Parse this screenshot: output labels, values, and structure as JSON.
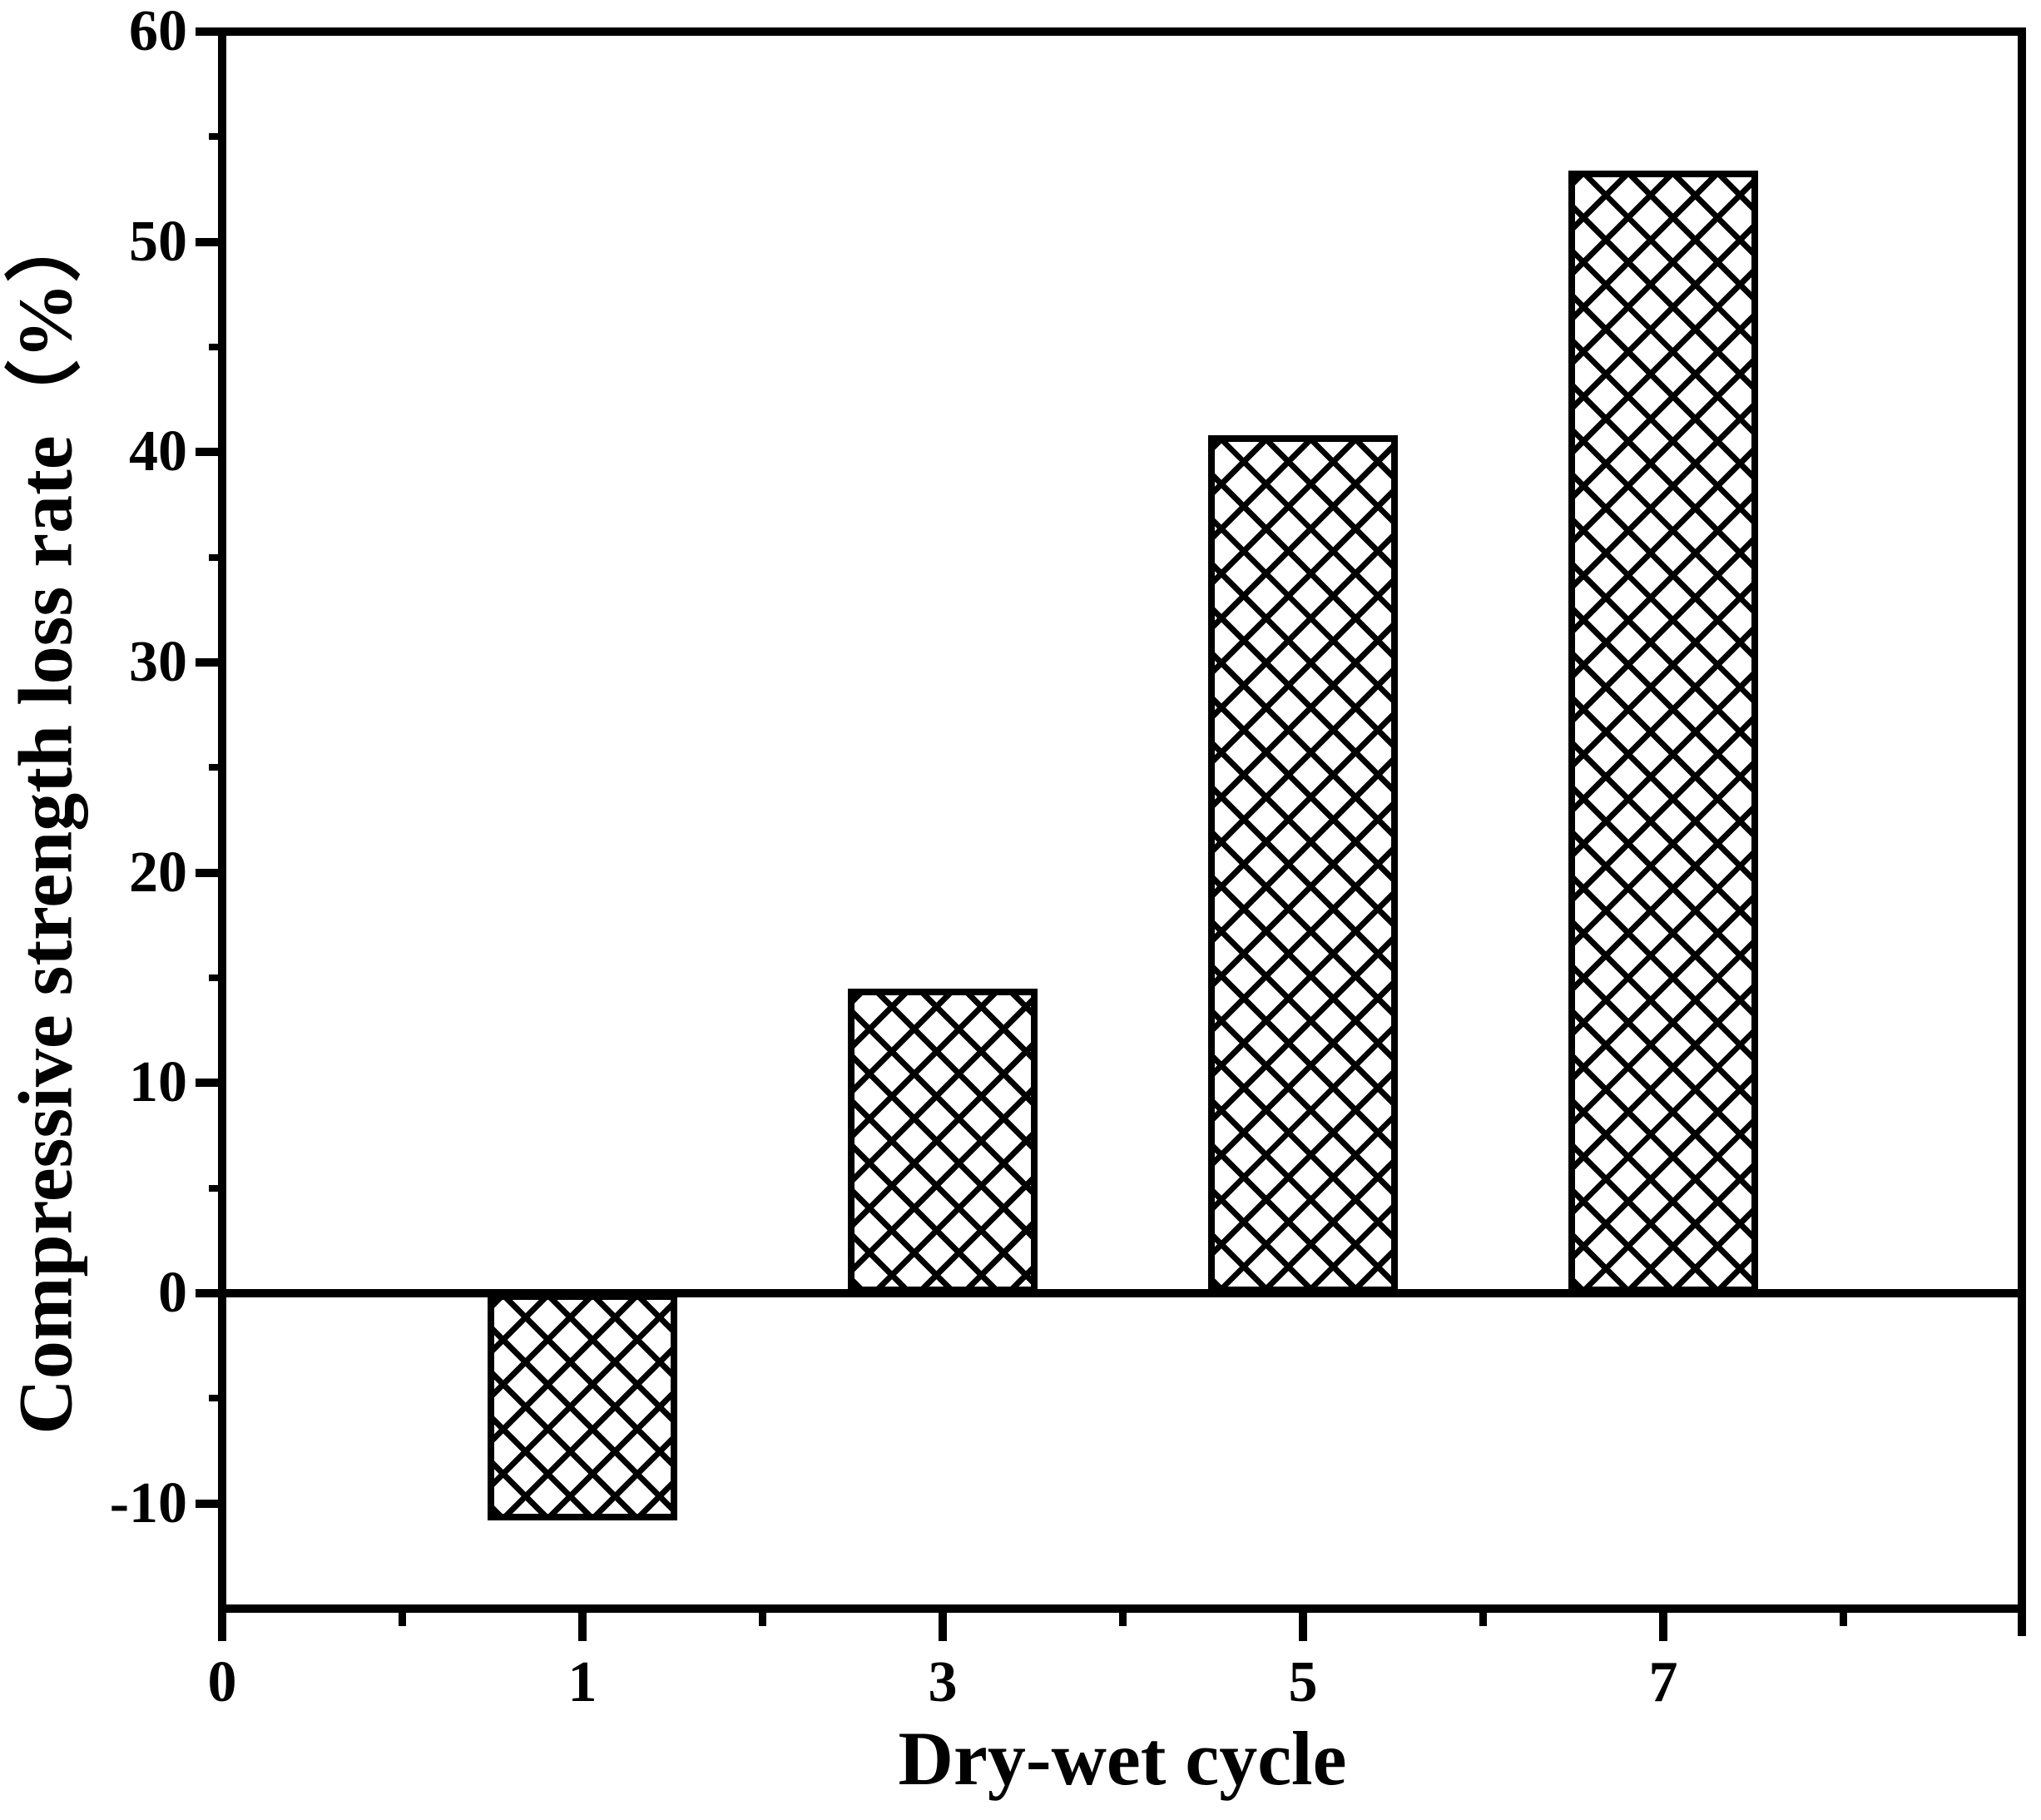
{
  "chart_data": {
    "type": "bar",
    "title": "",
    "xlabel": "Dry-wet cycle",
    "ylabel": "Compressive strength loss rate（%）",
    "categories": [
      "1",
      "3",
      "5",
      "7"
    ],
    "values": [
      -10.8,
      14.5,
      40.8,
      53.4
    ],
    "ylim": [
      -15,
      60
    ],
    "xlim_positions": [
      0,
      5
    ],
    "bar_positions": [
      1,
      2,
      3,
      4
    ],
    "grid": false,
    "legend": "none",
    "x_axis": {
      "major_ticks": [
        {
          "label": "0",
          "position": 0
        },
        {
          "label": "1",
          "position": 1
        },
        {
          "label": "3",
          "position": 2
        },
        {
          "label": "5",
          "position": 3
        },
        {
          "label": "7",
          "position": 4
        }
      ],
      "minor_positions": [
        0.5,
        1.5,
        2.5,
        3.5,
        4.5
      ]
    },
    "y_axis": {
      "major_ticks": [
        {
          "label": "60",
          "value": 60
        },
        {
          "label": "50",
          "value": 50
        },
        {
          "label": "40",
          "value": 40
        },
        {
          "label": "30",
          "value": 30
        },
        {
          "label": "20",
          "value": 20
        },
        {
          "label": "10",
          "value": 10
        },
        {
          "label": "0",
          "value": 0
        },
        {
          "label": "-10",
          "value": -10
        }
      ],
      "minor_ticks": [
        55,
        45,
        35,
        25,
        15,
        5,
        -5
      ]
    },
    "style": {
      "bar_fill": "#ffffff",
      "bar_hatch": "diagonal-crosshatch",
      "line_color": "#000000",
      "background": "#ffffff",
      "text_color": "#000000"
    }
  }
}
